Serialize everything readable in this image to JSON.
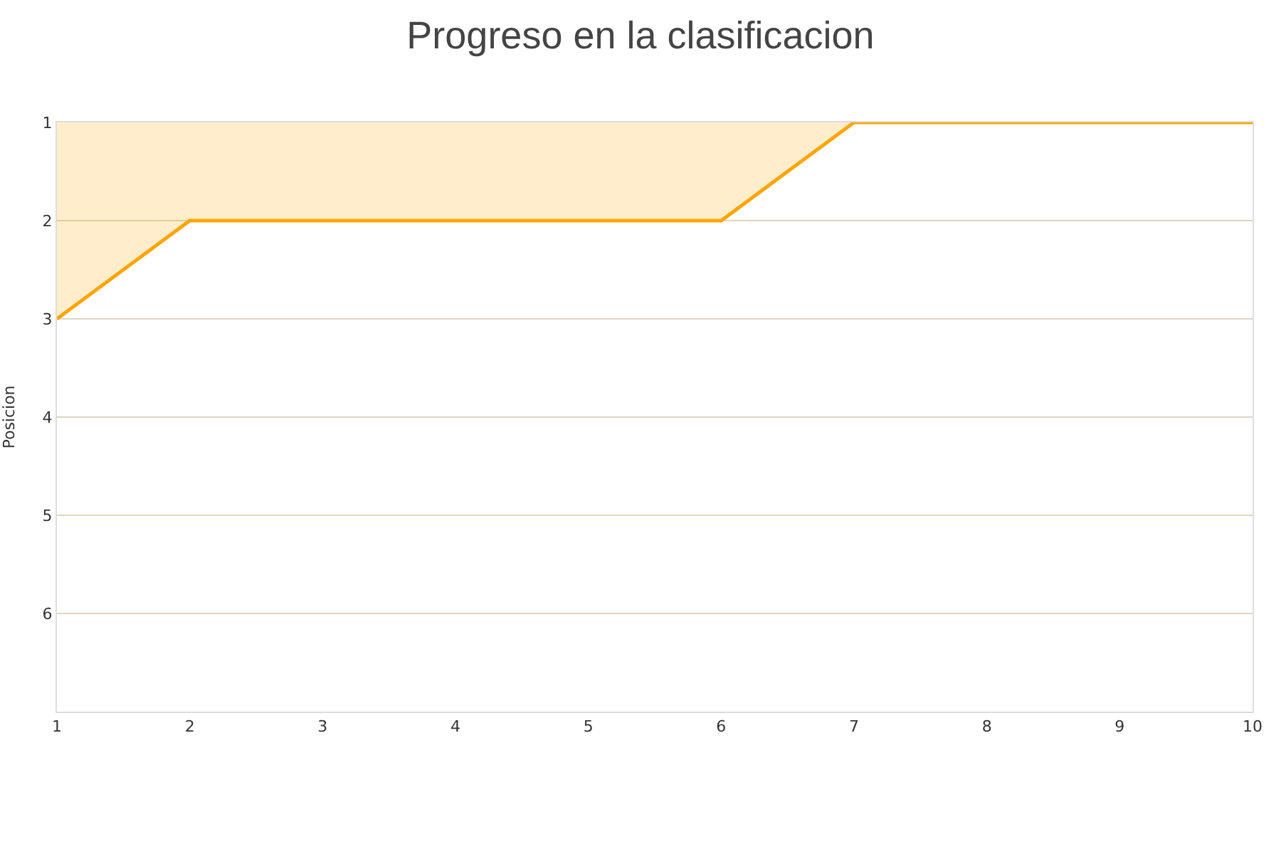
{
  "chart_data": {
    "type": "area",
    "title": "Progreso en la clasificacion",
    "ylabel": "Posicion",
    "x": [
      1,
      2,
      3,
      4,
      5,
      6,
      7,
      8,
      9,
      10
    ],
    "series": [
      {
        "color": "#ffa500",
        "values": [
          3,
          2,
          2,
          2,
          2,
          2,
          1,
          1,
          1,
          1
        ]
      }
    ],
    "xlim": [
      1,
      10
    ],
    "xticks": [
      1,
      2,
      3,
      4,
      5,
      6,
      7,
      8,
      9,
      10
    ],
    "ylim": [
      7,
      1
    ],
    "yticks": [
      1,
      2,
      3,
      4,
      5,
      6
    ],
    "grid": "y"
  }
}
